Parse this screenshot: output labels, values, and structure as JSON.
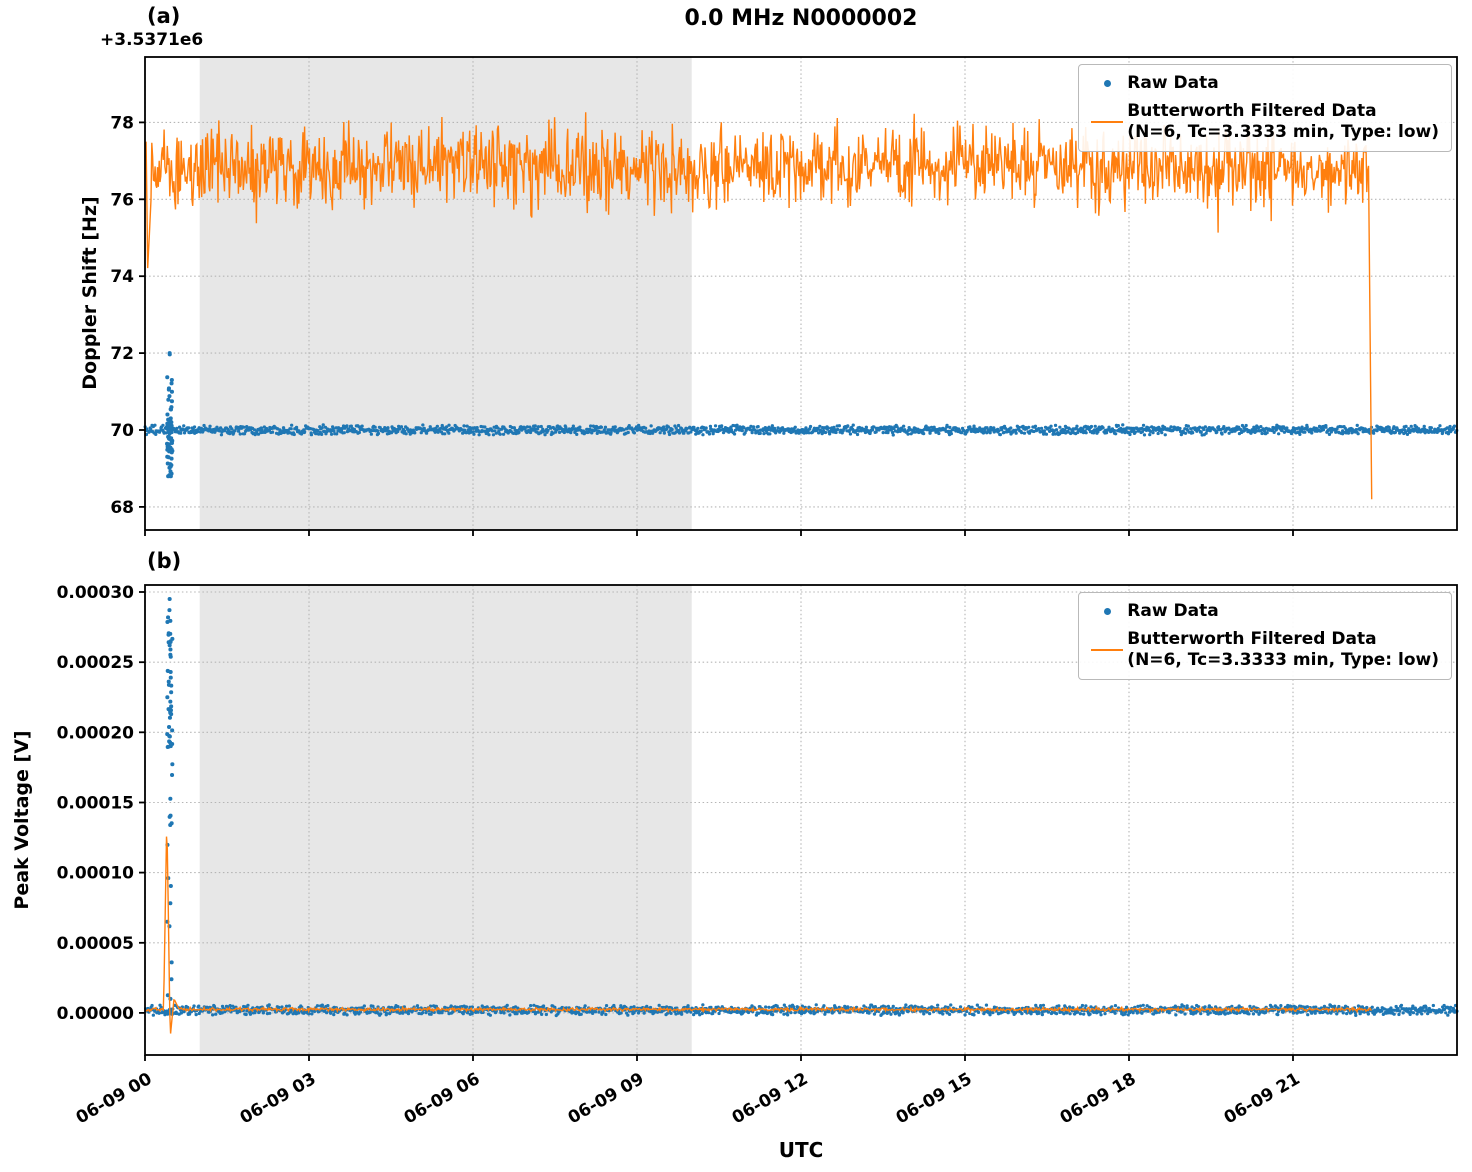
{
  "figure": {
    "title": "0.0 MHz N0000002",
    "panel_a_label": "(a)",
    "panel_b_label": "(b)",
    "offset_text": "+3.5371e6",
    "xlabel": "UTC"
  },
  "legend": {
    "raw_label": "Raw Data",
    "filtered_label_line1": "Butterworth Filtered Data",
    "filtered_label_line2": "(N=6, Tc=3.3333 min, Type: low)"
  },
  "colors": {
    "raw": "#1f77b4",
    "filtered": "#ff7f0e",
    "shade": "#e7e7e7",
    "grid": "#b5b5b5",
    "axis": "#000000"
  },
  "chart_data": [
    {
      "id": "a",
      "type": "scatter",
      "title": "0.0 MHz N0000002",
      "ylabel": "Doppler Shift [Hz]",
      "y_axis_offset": 3537100,
      "ylim": [
        67.4,
        79.7
      ],
      "yticks": [
        68,
        70,
        72,
        74,
        76,
        78
      ],
      "ytick_labels": [
        "68",
        "70",
        "72",
        "74",
        "76",
        "78"
      ],
      "xlim": [
        0,
        24
      ],
      "xticks": [
        0,
        3,
        6,
        9,
        12,
        15,
        18,
        21
      ],
      "xtick_labels": [
        "06-09 00",
        "06-09 03",
        "06-09 06",
        "06-09 09",
        "06-09 12",
        "06-09 15",
        "06-09 18",
        "06-09 21"
      ],
      "xtick_labels_visible": false,
      "shaded_region": [
        1.0,
        10.0
      ],
      "grid": true,
      "legend_position": "upper right",
      "series": [
        {
          "name": "Raw Data",
          "style": "scatter",
          "color": "#1f77b4",
          "summary": "dense horizontal band at +70 Hz (3537170 Hz) for the full 24 h, half-width about 0.1 Hz, plus a vertical burst near 00:27 UTC spanning 68.8 to 72.0",
          "band": {
            "y": 70.0,
            "half_width": 0.1,
            "t_start": 0.0,
            "t_end": 24.0,
            "n": 1800
          },
          "burst": {
            "t_center": 0.45,
            "t_spread": 0.05,
            "y_min": 68.8,
            "y_max": 72.0,
            "n": 70
          }
        },
        {
          "name": "Butterworth Filtered Data (N=6, Tc=3.3333 min, Type: low)",
          "style": "line",
          "color": "#ff7f0e",
          "summary": "noisy filtered trace around +76.9 Hz (range ~75.2 to 79.0), initial transient dip to ~74.2 near 00:03, terminal drop to 68.2 at ~22:26 where the trace ends",
          "baseline": 76.85,
          "noise_amplitude": 1.05,
          "range": [
            74.9,
            79.05
          ],
          "t_start": 0.02,
          "t_end": 22.44,
          "n": 1500,
          "keypoints": [
            [
              0.02,
              77.5
            ],
            [
              0.05,
              74.2
            ],
            [
              0.12,
              76.3
            ],
            [
              22.38,
              76.9
            ],
            [
              22.44,
              68.2
            ]
          ]
        }
      ]
    },
    {
      "id": "b",
      "type": "scatter",
      "ylabel": "Peak Voltage [V]",
      "ylim": [
        -3e-05,
        0.000305
      ],
      "yticks": [
        0.0,
        5e-05,
        0.0001,
        0.00015,
        0.0002,
        0.00025,
        0.0003
      ],
      "ytick_labels": [
        "0.00000",
        "0.00005",
        "0.00010",
        "0.00015",
        "0.00020",
        "0.00025",
        "0.00030"
      ],
      "xlim": [
        0,
        24
      ],
      "xticks": [
        0,
        3,
        6,
        9,
        12,
        15,
        18,
        21
      ],
      "xtick_labels": [
        "06-09 00",
        "06-09 03",
        "06-09 06",
        "06-09 09",
        "06-09 12",
        "06-09 15",
        "06-09 18",
        "06-09 21"
      ],
      "xtick_labels_visible": true,
      "xlabel": "UTC",
      "shaded_region": [
        1.0,
        10.0
      ],
      "grid": true,
      "legend_position": "upper right",
      "series": [
        {
          "name": "Raw Data",
          "style": "scatter",
          "color": "#1f77b4",
          "summary": "dense band just above 0 V (~2e-6 V, half-width ~2.8e-6 V) across the full 24 h, plus a vertical burst near 00:27 UTC with points up to 2.95e-4 V, densest between 1.8e-4 and 2.75e-4 V",
          "band": {
            "y": 2e-06,
            "half_width": 2.8e-06,
            "t_start": 0.0,
            "t_end": 24.0,
            "n": 1800
          },
          "burst": {
            "t_center": 0.45,
            "t_spread": 0.05,
            "y_min": 1e-05,
            "y_max": 0.000295,
            "n": 60,
            "dense_range": [
              0.00018,
              0.000275
            ]
          }
        },
        {
          "name": "Butterworth Filtered Data (N=6, Tc=3.3333 min, Type: low)",
          "style": "line",
          "color": "#ff7f0e",
          "summary": "flat trace at ~2.5e-6 V with one transient: peak 1.4e-4 V near 00:24, undershoot to -1.8e-5 V near 00:28, settled by ~00:37; trace ends ~22:26",
          "baseline": 2.5e-06,
          "noise_amplitude": 1.2e-06,
          "t_start": 0.02,
          "t_end": 22.44,
          "n": 1500,
          "keypoints": [
            [
              0.34,
              4e-06
            ],
            [
              0.4,
              0.00014
            ],
            [
              0.46,
              -1.8e-05
            ],
            [
              0.53,
              1e-05
            ],
            [
              0.62,
              3e-06
            ]
          ]
        }
      ]
    }
  ]
}
